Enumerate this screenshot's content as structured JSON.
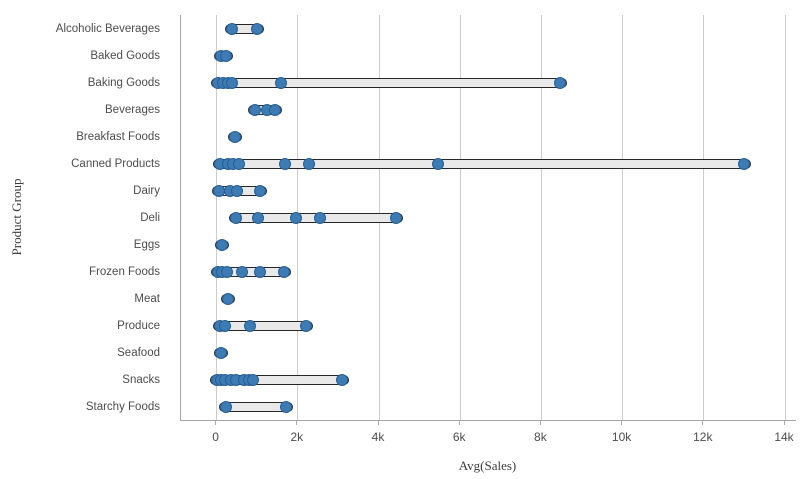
{
  "chart_data": {
    "type": "scatter",
    "subtype": "distribution-plot-horizontal-strips",
    "title": "",
    "xlabel": "Avg(Sales)",
    "ylabel": "Product Group",
    "xlim": [
      0,
      14000
    ],
    "grid": "vertical-only",
    "legend": "none",
    "x_tick_values": [
      0,
      2000,
      4000,
      6000,
      8000,
      10000,
      12000,
      14000
    ],
    "x_tick_labels": [
      "0",
      "2k",
      "4k",
      "6k",
      "8k",
      "10k",
      "12k",
      "14k"
    ],
    "categories": [
      "Alcoholic Beverages",
      "Baked Goods",
      "Baking Goods",
      "Beverages",
      "Breakfast Foods",
      "Canned Products",
      "Dairy",
      "Deli",
      "Eggs",
      "Frozen Foods",
      "Meat",
      "Produce",
      "Seafood",
      "Snacks",
      "Starchy Foods"
    ],
    "series": [
      {
        "name": "Avg(Sales)",
        "points_by_category": [
          [
            390,
            990
          ],
          [
            110,
            220
          ],
          [
            40,
            160,
            280,
            390,
            1580,
            8450
          ],
          [
            940,
            1230,
            1440
          ],
          [
            460
          ],
          [
            80,
            270,
            410,
            560,
            1690,
            2280,
            5460,
            12990
          ],
          [
            60,
            330,
            510,
            1080
          ],
          [
            490,
            1010,
            1950,
            2540,
            4430
          ],
          [
            140
          ],
          [
            40,
            130,
            260,
            630,
            1070,
            1670
          ],
          [
            270
          ],
          [
            80,
            200,
            820,
            2210
          ],
          [
            100
          ],
          [
            20,
            110,
            210,
            360,
            470,
            670,
            790,
            890,
            3090
          ],
          [
            230,
            1700
          ]
        ]
      }
    ],
    "colors": {
      "dot": "#3c7bb4",
      "dot_border": "#275e93",
      "bar_fill": "#e9e9e9",
      "bar_border": "#262626",
      "gridline": "#cccccc",
      "axis_line": "#a6a6a6",
      "label_text": "#4c4c4c"
    }
  }
}
